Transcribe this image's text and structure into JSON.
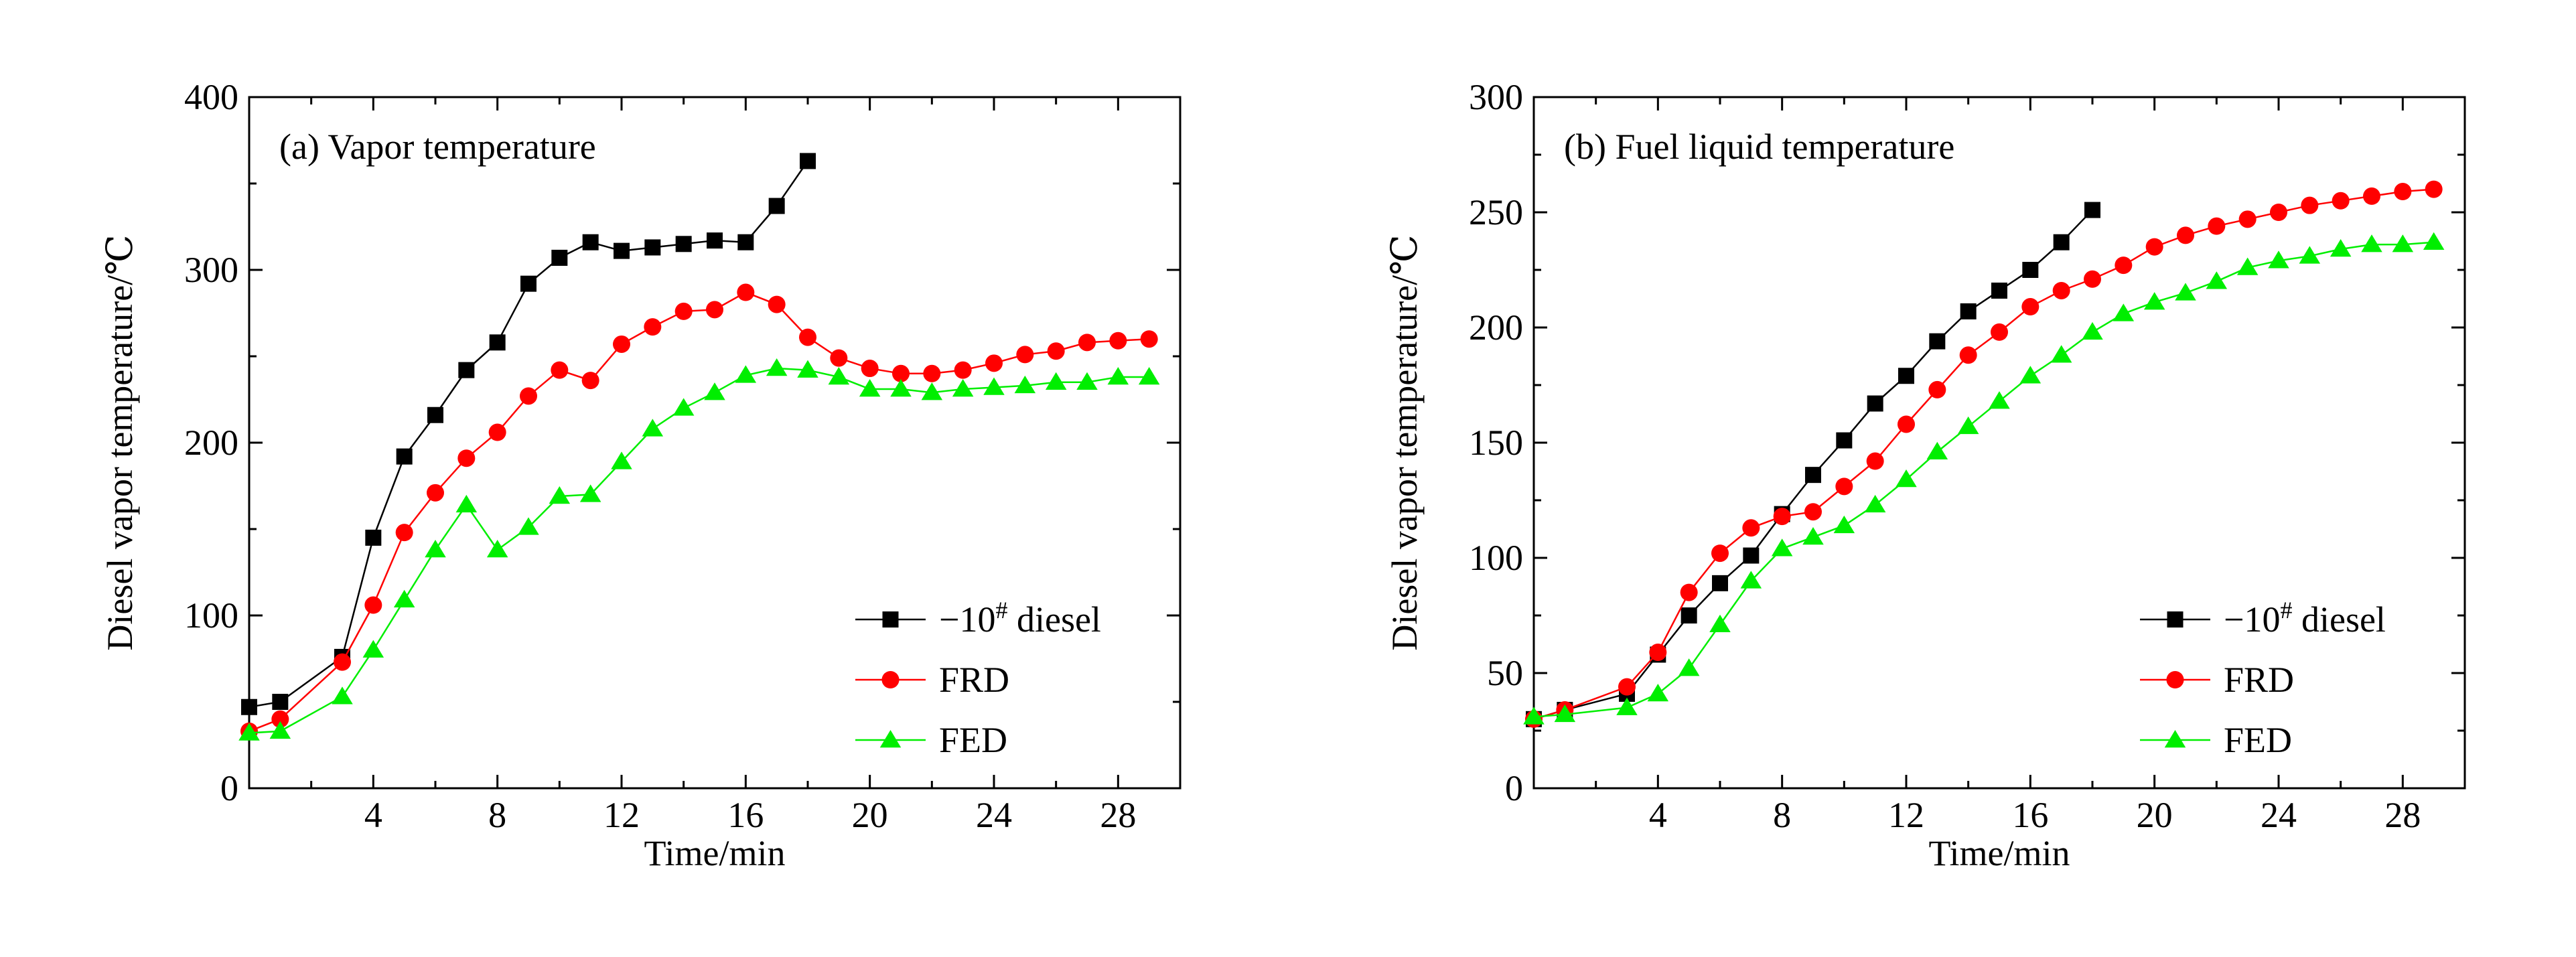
{
  "chart_data": [
    {
      "type": "line",
      "title": "(a) Vapor temperature",
      "xlabel": "Time/min",
      "ylabel": "Diesel vapor temperature/℃",
      "xlim": [
        0,
        30
      ],
      "ylim": [
        0,
        400
      ],
      "xticks": [
        4,
        8,
        12,
        16,
        20,
        24,
        28
      ],
      "yticks": [
        0,
        100,
        200,
        300,
        400
      ],
      "grid": false,
      "legend_position": "lower-right",
      "series": [
        {
          "name_main": "−10",
          "name_sup": "#",
          "name_rest": " diesel",
          "color": "#000000",
          "marker": "square",
          "points": [
            [
              0,
              47
            ],
            [
              1,
              50
            ],
            [
              3,
              76
            ],
            [
              4,
              145
            ],
            [
              5,
              192
            ],
            [
              6,
              216
            ],
            [
              7,
              242
            ],
            [
              8,
              258
            ],
            [
              9,
              292
            ],
            [
              10,
              307
            ],
            [
              11,
              316
            ],
            [
              12,
              311
            ],
            [
              13,
              313
            ],
            [
              14,
              315
            ],
            [
              15,
              317
            ],
            [
              16,
              316
            ],
            [
              17,
              337
            ],
            [
              18,
              363
            ]
          ]
        },
        {
          "name": "FRD",
          "color": "#ff0000",
          "marker": "circle",
          "points": [
            [
              0,
              33
            ],
            [
              1,
              40
            ],
            [
              3,
              73
            ],
            [
              4,
              106
            ],
            [
              5,
              148
            ],
            [
              6,
              171
            ],
            [
              7,
              191
            ],
            [
              8,
              206
            ],
            [
              9,
              227
            ],
            [
              10,
              242
            ],
            [
              11,
              236
            ],
            [
              12,
              257
            ],
            [
              13,
              267
            ],
            [
              14,
              276
            ],
            [
              15,
              277
            ],
            [
              16,
              287
            ],
            [
              17,
              280
            ],
            [
              18,
              261
            ],
            [
              19,
              249
            ],
            [
              20,
              243
            ],
            [
              21,
              240
            ],
            [
              22,
              240
            ],
            [
              23,
              242
            ],
            [
              24,
              246
            ],
            [
              25,
              251
            ],
            [
              26,
              253
            ],
            [
              27,
              258
            ],
            [
              28,
              259
            ],
            [
              29,
              260
            ]
          ]
        },
        {
          "name": "FED",
          "color": "#00ee00",
          "marker": "triangle",
          "points": [
            [
              0,
              32
            ],
            [
              1,
              33
            ],
            [
              3,
              53
            ],
            [
              4,
              80
            ],
            [
              5,
              109
            ],
            [
              6,
              138
            ],
            [
              7,
              164
            ],
            [
              8,
              138
            ],
            [
              9,
              151
            ],
            [
              10,
              169
            ],
            [
              11,
              170
            ],
            [
              12,
              189
            ],
            [
              13,
              208
            ],
            [
              14,
              220
            ],
            [
              15,
              229
            ],
            [
              16,
              239
            ],
            [
              17,
              243
            ],
            [
              18,
              242
            ],
            [
              19,
              238
            ],
            [
              20,
              231
            ],
            [
              21,
              231
            ],
            [
              22,
              229
            ],
            [
              23,
              231
            ],
            [
              24,
              232
            ],
            [
              25,
              233
            ],
            [
              26,
              235
            ],
            [
              27,
              235
            ],
            [
              28,
              238
            ],
            [
              29,
              238
            ]
          ]
        }
      ]
    },
    {
      "type": "line",
      "title": "(b) Fuel liquid temperature",
      "xlabel": "Time/min",
      "ylabel": "Diesel vapor temperature/℃",
      "xlim": [
        0,
        30
      ],
      "ylim": [
        0,
        300
      ],
      "xticks": [
        4,
        8,
        12,
        16,
        20,
        24,
        28
      ],
      "yticks": [
        0,
        50,
        100,
        150,
        200,
        250,
        300
      ],
      "grid": false,
      "legend_position": "lower-right",
      "series": [
        {
          "name_main": "−10",
          "name_sup": "#",
          "name_rest": " diesel",
          "color": "#000000",
          "marker": "square",
          "points": [
            [
              0,
              30
            ],
            [
              1,
              34
            ],
            [
              3,
              41
            ],
            [
              4,
              58
            ],
            [
              5,
              75
            ],
            [
              6,
              89
            ],
            [
              7,
              101
            ],
            [
              8,
              119
            ],
            [
              9,
              136
            ],
            [
              10,
              151
            ],
            [
              11,
              167
            ],
            [
              12,
              179
            ],
            [
              13,
              194
            ],
            [
              14,
              207
            ],
            [
              15,
              216
            ],
            [
              16,
              225
            ],
            [
              17,
              237
            ],
            [
              18,
              251
            ]
          ]
        },
        {
          "name": "FRD",
          "color": "#ff0000",
          "marker": "circle",
          "points": [
            [
              0,
              30
            ],
            [
              1,
              34
            ],
            [
              3,
              44
            ],
            [
              4,
              59
            ],
            [
              5,
              85
            ],
            [
              6,
              102
            ],
            [
              7,
              113
            ],
            [
              8,
              118
            ],
            [
              9,
              120
            ],
            [
              10,
              131
            ],
            [
              11,
              142
            ],
            [
              12,
              158
            ],
            [
              13,
              173
            ],
            [
              14,
              188
            ],
            [
              15,
              198
            ],
            [
              16,
              209
            ],
            [
              17,
              216
            ],
            [
              18,
              221
            ],
            [
              19,
              227
            ],
            [
              20,
              235
            ],
            [
              21,
              240
            ],
            [
              22,
              244
            ],
            [
              23,
              247
            ],
            [
              24,
              250
            ],
            [
              25,
              253
            ],
            [
              26,
              255
            ],
            [
              27,
              257
            ],
            [
              28,
              259
            ],
            [
              29,
              260
            ]
          ]
        },
        {
          "name": "FED",
          "color": "#00ee00",
          "marker": "triangle",
          "points": [
            [
              0,
              31
            ],
            [
              1,
              32
            ],
            [
              3,
              35
            ],
            [
              4,
              41
            ],
            [
              5,
              52
            ],
            [
              6,
              71
            ],
            [
              7,
              90
            ],
            [
              8,
              104
            ],
            [
              9,
              109
            ],
            [
              10,
              114
            ],
            [
              11,
              123
            ],
            [
              12,
              134
            ],
            [
              13,
              146
            ],
            [
              14,
              157
            ],
            [
              15,
              168
            ],
            [
              16,
              179
            ],
            [
              17,
              188
            ],
            [
              18,
              198
            ],
            [
              19,
              206
            ],
            [
              20,
              211
            ],
            [
              21,
              215
            ],
            [
              22,
              220
            ],
            [
              23,
              226
            ],
            [
              24,
              229
            ],
            [
              25,
              231
            ],
            [
              26,
              234
            ],
            [
              27,
              236
            ],
            [
              28,
              236
            ],
            [
              29,
              237
            ]
          ]
        }
      ]
    }
  ]
}
